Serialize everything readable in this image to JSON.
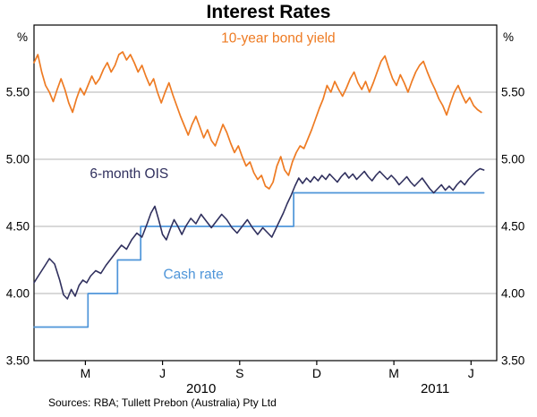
{
  "page": {
    "title": "Interest Rates",
    "source_note": "Sources: RBA; Tullett Prebon (Australia) Pty Ltd"
  },
  "chart_data": {
    "type": "line",
    "title": "Interest Rates",
    "unit_left": "%",
    "unit_right": "%",
    "ylim": [
      3.5,
      6.0
    ],
    "yticks": [
      3.5,
      4.0,
      4.5,
      5.0,
      5.5
    ],
    "ytick_labels": [
      "3.50",
      "4.00",
      "4.50",
      "5.00",
      "5.50"
    ],
    "gridlines": [
      4.0,
      4.5,
      5.0,
      5.5
    ],
    "xlim": [
      0,
      18
    ],
    "x_unit": "months-since-Jan-2010",
    "xticks": [
      2,
      5,
      8,
      11,
      14,
      17
    ],
    "xtick_labels": [
      "M",
      "J",
      "S",
      "D",
      "M",
      "J"
    ],
    "year_labels": [
      {
        "text": "2010",
        "x": 6.5
      },
      {
        "text": "2011",
        "x": 15.6
      }
    ],
    "colors": {
      "grid": "#b3b3b3",
      "frame": "#000000"
    },
    "legend_position": "inline-labels",
    "series": [
      {
        "name": "Cash rate",
        "color": "#4e95d9",
        "width": 1.7,
        "label_pos": {
          "x": 6.2,
          "y": 4.11
        },
        "points": [
          [
            0,
            3.75
          ],
          [
            2.1,
            3.75
          ],
          [
            2.1,
            4.0
          ],
          [
            3.25,
            4.0
          ],
          [
            3.25,
            4.25
          ],
          [
            4.15,
            4.25
          ],
          [
            4.15,
            4.5
          ],
          [
            10.1,
            4.5
          ],
          [
            10.1,
            4.75
          ],
          [
            17.5,
            4.75
          ]
        ]
      },
      {
        "name": "6-month OIS",
        "color": "#30305e",
        "width": 1.6,
        "label_pos": {
          "x": 3.7,
          "y": 4.86
        },
        "points": [
          [
            0,
            4.08
          ],
          [
            0.2,
            4.14
          ],
          [
            0.4,
            4.2
          ],
          [
            0.6,
            4.26
          ],
          [
            0.8,
            4.22
          ],
          [
            1,
            4.1
          ],
          [
            1.15,
            3.99
          ],
          [
            1.3,
            3.96
          ],
          [
            1.45,
            4.03
          ],
          [
            1.6,
            3.98
          ],
          [
            1.75,
            4.06
          ],
          [
            1.9,
            4.1
          ],
          [
            2.05,
            4.08
          ],
          [
            2.2,
            4.13
          ],
          [
            2.4,
            4.17
          ],
          [
            2.6,
            4.15
          ],
          [
            2.8,
            4.21
          ],
          [
            3,
            4.26
          ],
          [
            3.2,
            4.31
          ],
          [
            3.4,
            4.36
          ],
          [
            3.6,
            4.33
          ],
          [
            3.8,
            4.4
          ],
          [
            4,
            4.45
          ],
          [
            4.2,
            4.42
          ],
          [
            4.4,
            4.52
          ],
          [
            4.55,
            4.6
          ],
          [
            4.7,
            4.65
          ],
          [
            4.85,
            4.55
          ],
          [
            5,
            4.44
          ],
          [
            5.15,
            4.4
          ],
          [
            5.3,
            4.48
          ],
          [
            5.45,
            4.55
          ],
          [
            5.6,
            4.5
          ],
          [
            5.75,
            4.44
          ],
          [
            5.9,
            4.5
          ],
          [
            6.1,
            4.56
          ],
          [
            6.3,
            4.52
          ],
          [
            6.5,
            4.59
          ],
          [
            6.7,
            4.54
          ],
          [
            6.9,
            4.49
          ],
          [
            7.1,
            4.54
          ],
          [
            7.3,
            4.59
          ],
          [
            7.5,
            4.55
          ],
          [
            7.7,
            4.49
          ],
          [
            7.9,
            4.45
          ],
          [
            8.1,
            4.5
          ],
          [
            8.3,
            4.55
          ],
          [
            8.5,
            4.49
          ],
          [
            8.7,
            4.44
          ],
          [
            8.9,
            4.49
          ],
          [
            9.1,
            4.45
          ],
          [
            9.25,
            4.42
          ],
          [
            9.4,
            4.48
          ],
          [
            9.55,
            4.54
          ],
          [
            9.7,
            4.6
          ],
          [
            9.85,
            4.67
          ],
          [
            10,
            4.73
          ],
          [
            10.15,
            4.8
          ],
          [
            10.3,
            4.86
          ],
          [
            10.45,
            4.82
          ],
          [
            10.6,
            4.86
          ],
          [
            10.75,
            4.83
          ],
          [
            10.9,
            4.87
          ],
          [
            11.05,
            4.84
          ],
          [
            11.2,
            4.88
          ],
          [
            11.35,
            4.85
          ],
          [
            11.5,
            4.89
          ],
          [
            11.65,
            4.86
          ],
          [
            11.8,
            4.83
          ],
          [
            11.95,
            4.87
          ],
          [
            12.1,
            4.9
          ],
          [
            12.25,
            4.86
          ],
          [
            12.4,
            4.89
          ],
          [
            12.55,
            4.85
          ],
          [
            12.7,
            4.88
          ],
          [
            12.85,
            4.91
          ],
          [
            13,
            4.87
          ],
          [
            13.15,
            4.84
          ],
          [
            13.3,
            4.88
          ],
          [
            13.45,
            4.91
          ],
          [
            13.6,
            4.88
          ],
          [
            13.75,
            4.85
          ],
          [
            13.9,
            4.88
          ],
          [
            14.05,
            4.85
          ],
          [
            14.2,
            4.81
          ],
          [
            14.35,
            4.84
          ],
          [
            14.5,
            4.87
          ],
          [
            14.65,
            4.83
          ],
          [
            14.8,
            4.8
          ],
          [
            14.95,
            4.83
          ],
          [
            15.1,
            4.86
          ],
          [
            15.25,
            4.82
          ],
          [
            15.4,
            4.78
          ],
          [
            15.55,
            4.75
          ],
          [
            15.7,
            4.78
          ],
          [
            15.85,
            4.81
          ],
          [
            16,
            4.77
          ],
          [
            16.15,
            4.8
          ],
          [
            16.3,
            4.77
          ],
          [
            16.45,
            4.81
          ],
          [
            16.6,
            4.84
          ],
          [
            16.75,
            4.81
          ],
          [
            16.9,
            4.85
          ],
          [
            17.05,
            4.88
          ],
          [
            17.2,
            4.91
          ],
          [
            17.35,
            4.93
          ],
          [
            17.5,
            4.92
          ]
        ]
      },
      {
        "name": "10-year bond yield",
        "color": "#ee7b23",
        "width": 1.7,
        "label_pos": {
          "x": 9.5,
          "y": 5.87
        },
        "points": [
          [
            0,
            5.72
          ],
          [
            0.15,
            5.78
          ],
          [
            0.3,
            5.65
          ],
          [
            0.45,
            5.55
          ],
          [
            0.6,
            5.5
          ],
          [
            0.75,
            5.43
          ],
          [
            0.9,
            5.52
          ],
          [
            1.05,
            5.6
          ],
          [
            1.2,
            5.52
          ],
          [
            1.35,
            5.42
          ],
          [
            1.5,
            5.35
          ],
          [
            1.65,
            5.45
          ],
          [
            1.8,
            5.53
          ],
          [
            1.95,
            5.48
          ],
          [
            2.1,
            5.55
          ],
          [
            2.25,
            5.62
          ],
          [
            2.4,
            5.56
          ],
          [
            2.55,
            5.6
          ],
          [
            2.7,
            5.67
          ],
          [
            2.85,
            5.72
          ],
          [
            3,
            5.65
          ],
          [
            3.15,
            5.7
          ],
          [
            3.3,
            5.78
          ],
          [
            3.45,
            5.8
          ],
          [
            3.6,
            5.74
          ],
          [
            3.75,
            5.78
          ],
          [
            3.9,
            5.72
          ],
          [
            4.05,
            5.65
          ],
          [
            4.2,
            5.7
          ],
          [
            4.35,
            5.62
          ],
          [
            4.5,
            5.55
          ],
          [
            4.65,
            5.6
          ],
          [
            4.8,
            5.5
          ],
          [
            4.95,
            5.42
          ],
          [
            5.1,
            5.5
          ],
          [
            5.25,
            5.57
          ],
          [
            5.4,
            5.48
          ],
          [
            5.55,
            5.4
          ],
          [
            5.7,
            5.32
          ],
          [
            5.85,
            5.25
          ],
          [
            6,
            5.18
          ],
          [
            6.15,
            5.26
          ],
          [
            6.3,
            5.32
          ],
          [
            6.45,
            5.24
          ],
          [
            6.6,
            5.16
          ],
          [
            6.75,
            5.22
          ],
          [
            6.9,
            5.14
          ],
          [
            7.05,
            5.1
          ],
          [
            7.2,
            5.18
          ],
          [
            7.35,
            5.26
          ],
          [
            7.5,
            5.2
          ],
          [
            7.65,
            5.12
          ],
          [
            7.8,
            5.05
          ],
          [
            7.95,
            5.1
          ],
          [
            8.1,
            5.02
          ],
          [
            8.25,
            4.95
          ],
          [
            8.4,
            4.98
          ],
          [
            8.55,
            4.9
          ],
          [
            8.7,
            4.85
          ],
          [
            8.85,
            4.88
          ],
          [
            9,
            4.8
          ],
          [
            9.15,
            4.78
          ],
          [
            9.3,
            4.83
          ],
          [
            9.45,
            4.95
          ],
          [
            9.6,
            5.02
          ],
          [
            9.75,
            4.92
          ],
          [
            9.9,
            4.88
          ],
          [
            10.05,
            4.98
          ],
          [
            10.2,
            5.05
          ],
          [
            10.35,
            5.1
          ],
          [
            10.5,
            5.08
          ],
          [
            10.65,
            5.15
          ],
          [
            10.8,
            5.22
          ],
          [
            10.95,
            5.3
          ],
          [
            11.1,
            5.38
          ],
          [
            11.25,
            5.45
          ],
          [
            11.4,
            5.55
          ],
          [
            11.55,
            5.5
          ],
          [
            11.7,
            5.58
          ],
          [
            11.85,
            5.52
          ],
          [
            12,
            5.47
          ],
          [
            12.15,
            5.53
          ],
          [
            12.3,
            5.6
          ],
          [
            12.45,
            5.65
          ],
          [
            12.6,
            5.57
          ],
          [
            12.75,
            5.52
          ],
          [
            12.9,
            5.58
          ],
          [
            13.05,
            5.5
          ],
          [
            13.2,
            5.57
          ],
          [
            13.35,
            5.65
          ],
          [
            13.5,
            5.73
          ],
          [
            13.65,
            5.77
          ],
          [
            13.8,
            5.68
          ],
          [
            13.95,
            5.6
          ],
          [
            14.1,
            5.55
          ],
          [
            14.25,
            5.63
          ],
          [
            14.4,
            5.57
          ],
          [
            14.55,
            5.5
          ],
          [
            14.7,
            5.58
          ],
          [
            14.85,
            5.65
          ],
          [
            15,
            5.7
          ],
          [
            15.15,
            5.73
          ],
          [
            15.3,
            5.65
          ],
          [
            15.45,
            5.58
          ],
          [
            15.6,
            5.52
          ],
          [
            15.75,
            5.45
          ],
          [
            15.9,
            5.4
          ],
          [
            16.05,
            5.33
          ],
          [
            16.2,
            5.42
          ],
          [
            16.35,
            5.5
          ],
          [
            16.5,
            5.55
          ],
          [
            16.65,
            5.48
          ],
          [
            16.8,
            5.42
          ],
          [
            16.95,
            5.46
          ],
          [
            17.1,
            5.4
          ],
          [
            17.25,
            5.37
          ],
          [
            17.4,
            5.35
          ]
        ]
      }
    ]
  }
}
